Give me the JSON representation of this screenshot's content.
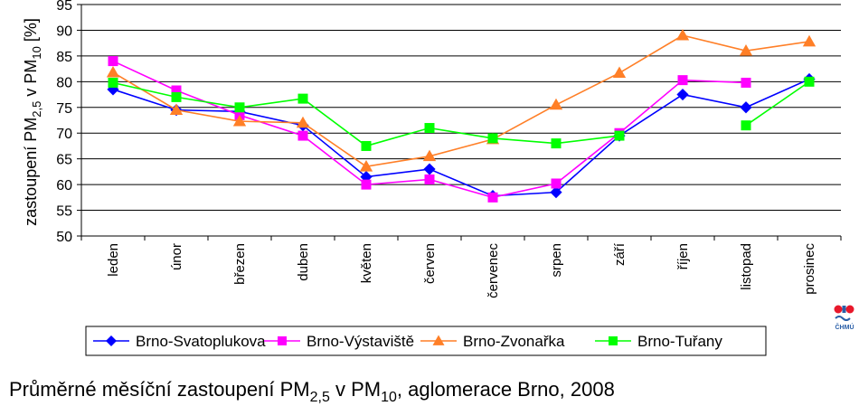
{
  "chart_data": {
    "type": "line",
    "ylabel": "zastoupení PM2,5 v PM10 [%]",
    "ylabel_parts": {
      "p1": "zastoupení PM",
      "sub1": "2,5",
      "p2": " v PM",
      "sub2": "10",
      "p3": " [%]"
    },
    "ylim": [
      50,
      95
    ],
    "yticks": [
      50,
      55,
      60,
      65,
      70,
      75,
      80,
      85,
      90,
      95
    ],
    "categories": [
      "leden",
      "únor",
      "březen",
      "duben",
      "květen",
      "červen",
      "červenec",
      "srpen",
      "září",
      "říjen",
      "listopad",
      "prosinec"
    ],
    "grid": true,
    "legend_position": "bottom",
    "series": [
      {
        "name": "Brno-Svatoplukova",
        "color": "#0000ff",
        "marker": "diamond",
        "values": [
          78.5,
          74.5,
          74.2,
          71.5,
          61.5,
          63.0,
          57.8,
          58.5,
          69.5,
          77.5,
          75.0,
          80.5
        ]
      },
      {
        "name": "Brno-Výstaviště",
        "color": "#ff00ff",
        "marker": "square",
        "values": [
          84.0,
          78.3,
          73.5,
          69.5,
          60.0,
          61.0,
          57.5,
          60.2,
          70.0,
          80.3,
          79.8,
          null
        ]
      },
      {
        "name": "Brno-Zvonařka",
        "color": "#ff7f27",
        "marker": "triangle",
        "values": [
          81.8,
          74.5,
          72.3,
          72.0,
          63.5,
          65.5,
          68.8,
          75.5,
          81.7,
          89.0,
          86.0,
          87.8
        ]
      },
      {
        "name": "Brno-Tuřany",
        "color": "#00ff00",
        "marker": "square",
        "values": [
          79.8,
          77.0,
          75.0,
          76.7,
          67.5,
          71.0,
          69.0,
          68.0,
          69.5,
          null,
          71.5,
          80.0
        ]
      }
    ],
    "caption_parts": {
      "p1": "Průměrné měsíční zastoupení PM",
      "sub1": "2,5",
      "p2": " v PM",
      "sub2": "10",
      "p3": ", aglomerace Brno, 2008"
    }
  },
  "logo": {
    "text": "ČHMÚ",
    "colors": [
      "#e8182b",
      "#2a5fa8"
    ]
  }
}
